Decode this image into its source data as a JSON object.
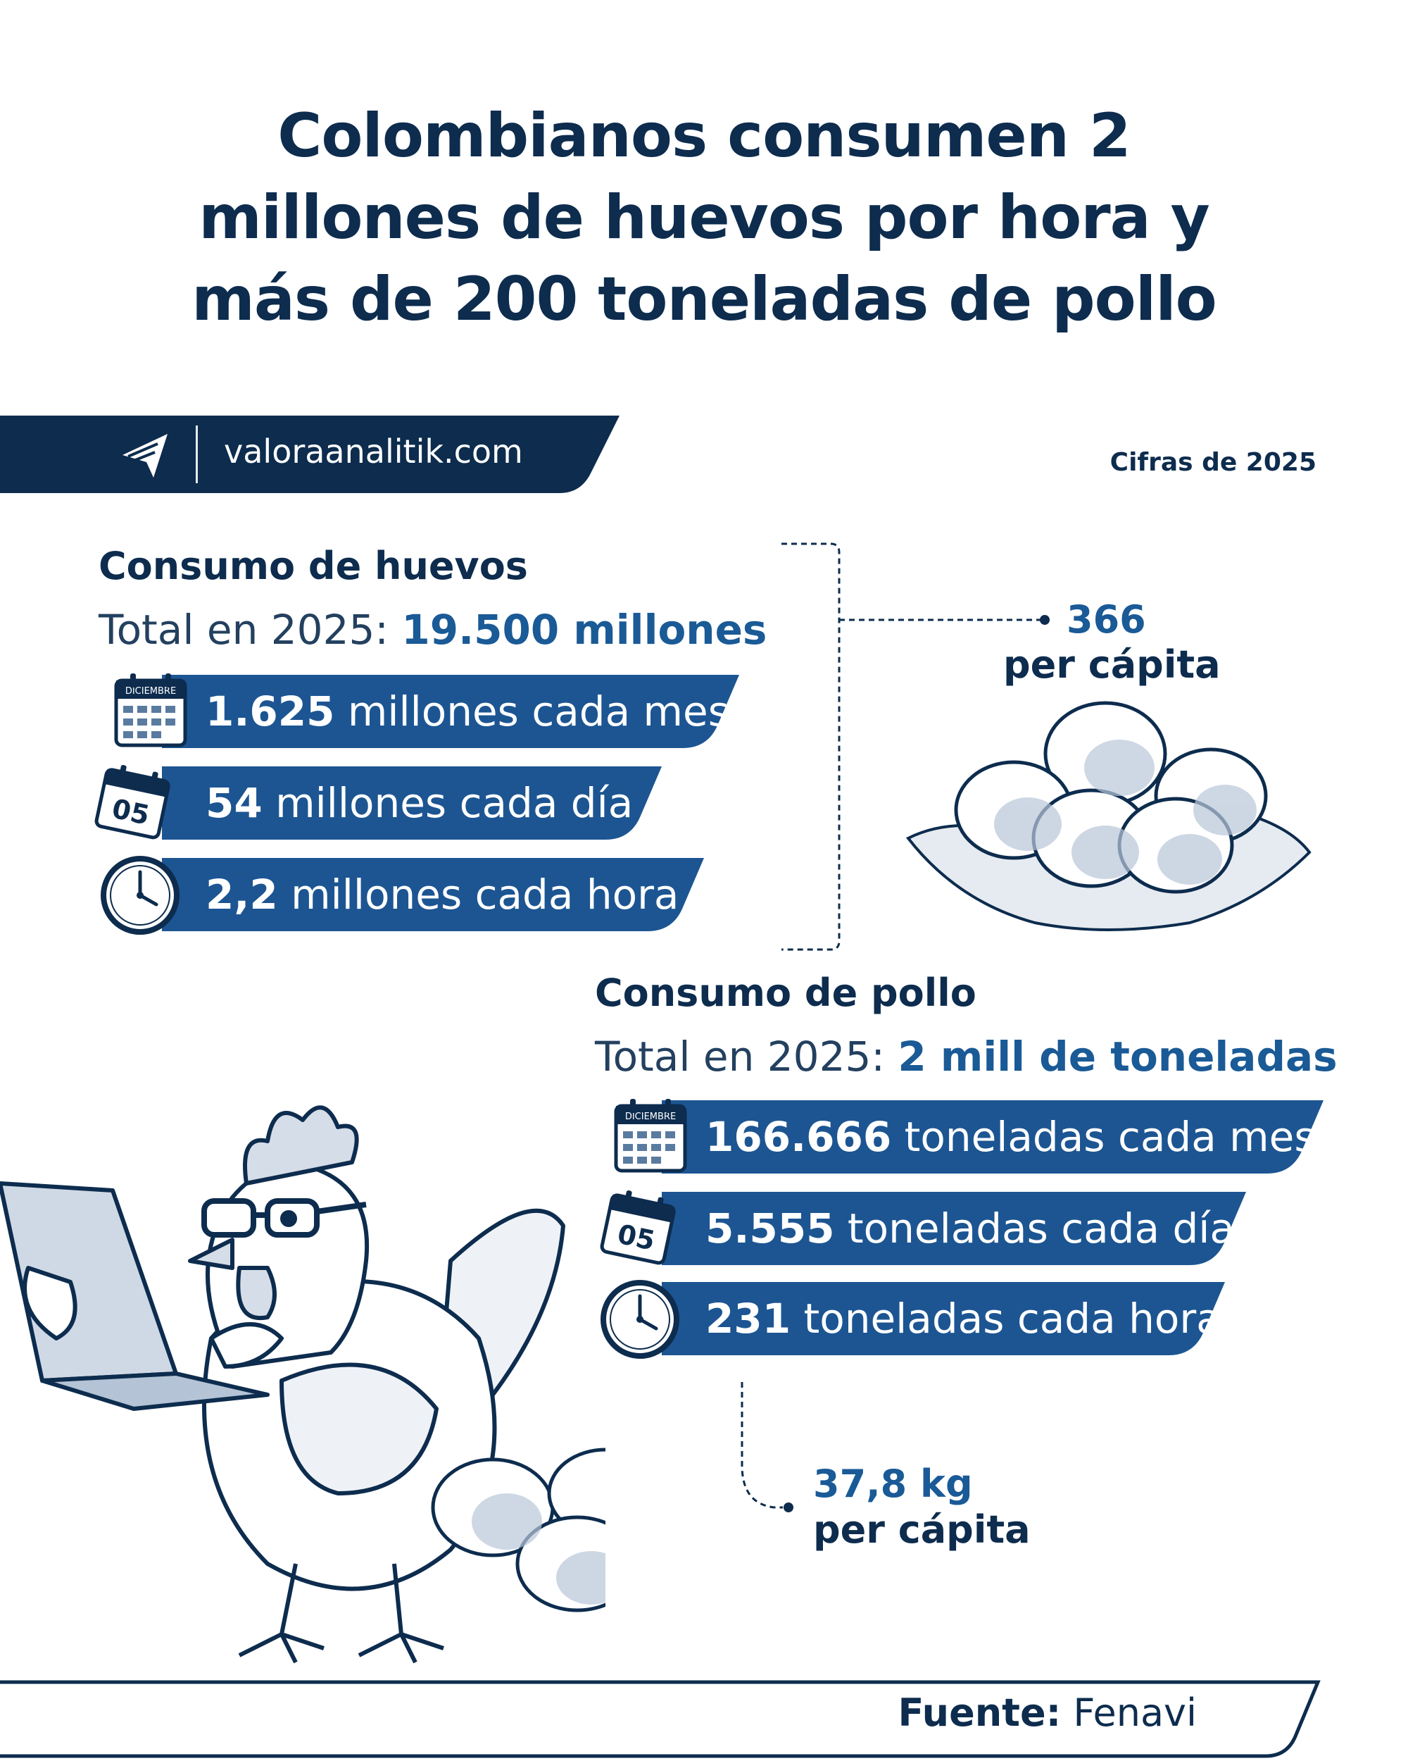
{
  "title": {
    "line1": "Colombianos consumen 2",
    "line2": "millones de huevos por hora y",
    "line3": "más de 200 toneladas de pollo"
  },
  "brand": {
    "site": "valoraanalitik.com",
    "logo_icon": "valora-logo-icon"
  },
  "cifras": "Cifras de 2025",
  "huevos": {
    "title": "Consumo de huevos",
    "total_label": "Total en 2025: ",
    "total_value": "19.500 millones",
    "rows": [
      {
        "icon": "calendar-month-icon",
        "icon_text": "DICIEMBRE",
        "value": "1.625",
        "label": " millones cada mes"
      },
      {
        "icon": "calendar-day-icon",
        "icon_text": "05",
        "value": "54",
        "label": " millones cada día"
      },
      {
        "icon": "clock-icon",
        "value": "2,2",
        "label": " millones cada hora"
      }
    ],
    "per_capita_value": "366",
    "per_capita_label": "per cápita"
  },
  "pollo": {
    "title": "Consumo de pollo",
    "total_label": "Total en 2025: ",
    "total_value": "2 mill de toneladas",
    "rows": [
      {
        "icon": "calendar-month-icon",
        "icon_text": "DICIEMBRE",
        "value": "166.666",
        "label": " toneladas cada mes"
      },
      {
        "icon": "calendar-day-icon",
        "icon_text": "05",
        "value": "5.555",
        "label": " toneladas cada día"
      },
      {
        "icon": "clock-icon",
        "value": "231",
        "label": " toneladas cada hora"
      }
    ],
    "per_capita_value": "37,8 kg",
    "per_capita_label": "per cápita"
  },
  "footer": {
    "source_label": "Fuente:",
    "source_value": " Fenavi"
  },
  "colors": {
    "navy": "#0d2c4e",
    "blue": "#1a5a96",
    "bar": "#1c5592"
  }
}
